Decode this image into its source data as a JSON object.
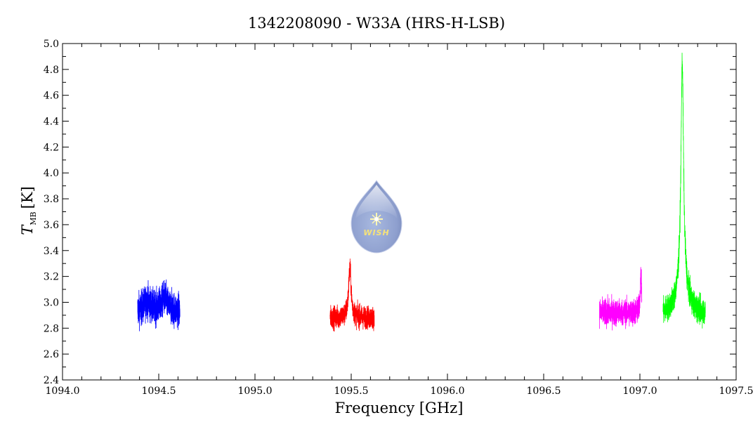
{
  "chart_data": {
    "type": "line",
    "title": "1342208090 - W33A (HRS-H-LSB)",
    "xlabel": "Frequency [GHz]",
    "ylabel_symbol": "T",
    "ylabel_subscript": "MB",
    "ylabel_unit": "[K]",
    "xlim": [
      1094.0,
      1097.5
    ],
    "ylim": [
      2.4,
      5.0
    ],
    "x_ticks": [
      "1094.0",
      "1094.5",
      "1095.0",
      "1095.5",
      "1096.0",
      "1096.5",
      "1097.0",
      "1097.5"
    ],
    "y_ticks": [
      "2.4",
      "2.6",
      "2.8",
      "3.0",
      "3.2",
      "3.4",
      "3.6",
      "3.8",
      "4.0",
      "4.2",
      "4.4",
      "4.6",
      "4.8",
      "5.0"
    ],
    "grid": false,
    "series": [
      {
        "color": "#0000ff",
        "x_range": [
          1094.39,
          1094.61
        ],
        "baseline": 2.93,
        "noise": 0.09,
        "peaks": [
          {
            "x": 1094.44,
            "height": 0.08,
            "width": 0.02
          },
          {
            "x": 1094.53,
            "height": 0.1,
            "width": 0.02
          }
        ]
      },
      {
        "color": "#ff0000",
        "x_range": [
          1095.39,
          1095.62
        ],
        "baseline": 2.88,
        "noise": 0.06,
        "peaks": [
          {
            "x": 1095.493,
            "height": 0.38,
            "width": 0.008
          }
        ]
      },
      {
        "color": "#ff00ff",
        "x_range": [
          1096.79,
          1097.01
        ],
        "baseline": 2.92,
        "noise": 0.07,
        "peaks": [
          {
            "x": 1097.005,
            "height": 0.3,
            "width": 0.004
          }
        ]
      },
      {
        "color": "#00ff00",
        "x_range": [
          1097.12,
          1097.34
        ],
        "baseline": 2.9,
        "noise": 0.07,
        "peaks": [
          {
            "x": 1097.22,
            "height": 1.74,
            "width": 0.008
          },
          {
            "x": 1097.22,
            "height": 0.22,
            "width": 0.035
          }
        ]
      }
    ]
  },
  "logo": {
    "text": "WISH"
  }
}
